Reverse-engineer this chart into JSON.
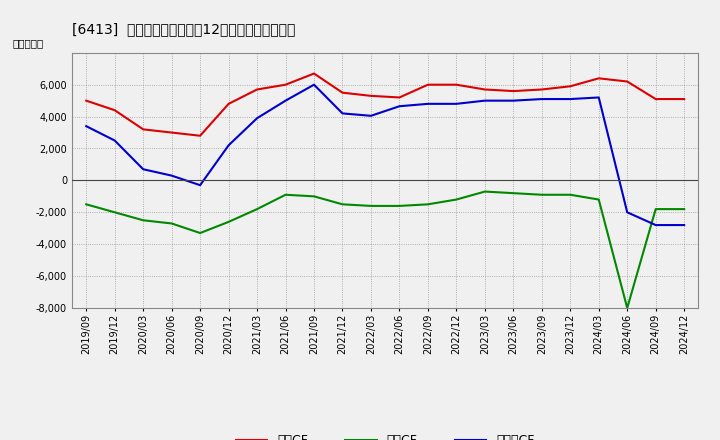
{
  "title": "[6413]  キャッシュフローの12か月移動合計の推移",
  "ylabel": "（百万円）",
  "ylim": [
    -8000,
    8000
  ],
  "yticks": [
    -8000,
    -6000,
    -4000,
    -2000,
    0,
    2000,
    4000,
    6000
  ],
  "dates": [
    "2019/09",
    "2019/12",
    "2020/03",
    "2020/06",
    "2020/09",
    "2020/12",
    "2021/03",
    "2021/06",
    "2021/09",
    "2021/12",
    "2022/03",
    "2022/06",
    "2022/09",
    "2022/12",
    "2023/03",
    "2023/06",
    "2023/09",
    "2023/12",
    "2024/03",
    "2024/06",
    "2024/09",
    "2024/12"
  ],
  "eigyo_cf": [
    5000,
    4400,
    3200,
    3000,
    2800,
    4800,
    5700,
    6000,
    6700,
    5500,
    5300,
    5200,
    6000,
    6000,
    5700,
    5600,
    5700,
    5900,
    6400,
    6200,
    5100,
    5100
  ],
  "toshi_cf": [
    -1500,
    -2000,
    -2500,
    -2700,
    -3300,
    -2600,
    -1800,
    -900,
    -1000,
    -1500,
    -1600,
    -1600,
    -1500,
    -1200,
    -700,
    -800,
    -900,
    -900,
    -1200,
    -8000,
    -1800,
    -1800
  ],
  "free_cf": [
    3400,
    2500,
    700,
    300,
    -300,
    2200,
    3900,
    5000,
    6000,
    4200,
    4050,
    4650,
    4800,
    4800,
    5000,
    5000,
    5100,
    5100,
    5200,
    -2000,
    -2800,
    -2800
  ],
  "eigyo_color": "#dd0000",
  "toshi_color": "#008800",
  "free_color": "#0000cc",
  "bg_color": "#f0f0f0",
  "plot_bg_color": "#f0f0f0",
  "grid_color": "#999999",
  "legend_labels": [
    "営業CF",
    "投資CF",
    "フリーCF"
  ]
}
